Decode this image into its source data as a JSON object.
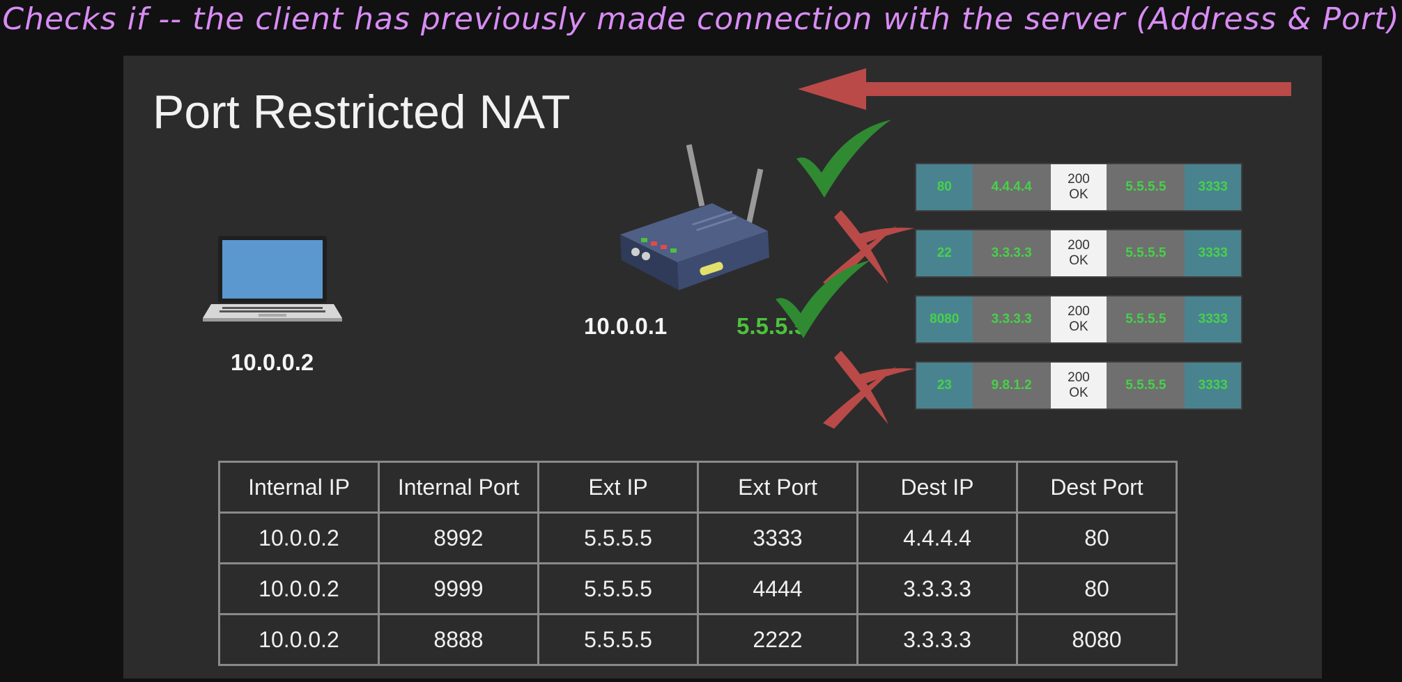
{
  "caption": "Checks if -- the client has previously made connection with the server (Address & Port)",
  "slide": {
    "title": "Port Restricted NAT",
    "client_ip": "10.0.0.2",
    "router_internal_ip": "10.0.0.1",
    "router_external_ip": "5.5.5.5",
    "colors": {
      "accent_green": "#4cc23c",
      "arrow_red": "#b94a48",
      "check_green": "#2f8a32"
    }
  },
  "packets": [
    {
      "src_port": "80",
      "src_ip": "4.4.4.4",
      "status_line1": "200",
      "status_line2": "OK",
      "dst_ip": "5.5.5.5",
      "dst_port": "3333",
      "result": "allowed"
    },
    {
      "src_port": "22",
      "src_ip": "3.3.3.3",
      "status_line1": "200",
      "status_line2": "OK",
      "dst_ip": "5.5.5.5",
      "dst_port": "3333",
      "result": "blocked"
    },
    {
      "src_port": "8080",
      "src_ip": "3.3.3.3",
      "status_line1": "200",
      "status_line2": "OK",
      "dst_ip": "5.5.5.5",
      "dst_port": "3333",
      "result": "allowed"
    },
    {
      "src_port": "23",
      "src_ip": "9.8.1.2",
      "status_line1": "200",
      "status_line2": "OK",
      "dst_ip": "5.5.5.5",
      "dst_port": "3333",
      "result": "blocked"
    }
  ],
  "table": {
    "headers": [
      "Internal IP",
      "Internal Port",
      "Ext IP",
      "Ext Port",
      "Dest IP",
      "Dest Port"
    ],
    "rows": [
      [
        "10.0.0.2",
        "8992",
        "5.5.5.5",
        "3333",
        "4.4.4.4",
        "80"
      ],
      [
        "10.0.0.2",
        "9999",
        "5.5.5.5",
        "4444",
        "3.3.3.3",
        "80"
      ],
      [
        "10.0.0.2",
        "8888",
        "5.5.5.5",
        "2222",
        "3.3.3.3",
        "8080"
      ]
    ]
  },
  "icons": {
    "laptop": "laptop-icon",
    "router": "router-icon",
    "arrow": "arrow-left-icon",
    "allowed": "check-icon",
    "blocked": "cross-icon"
  }
}
